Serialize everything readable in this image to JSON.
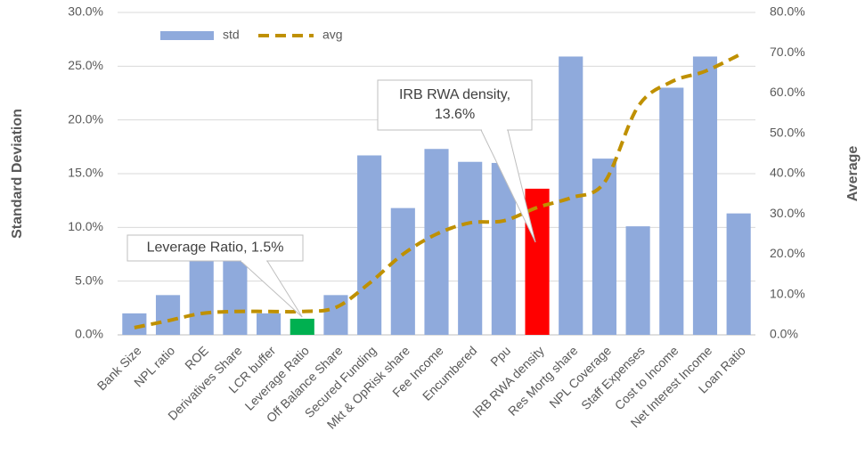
{
  "chart_data": {
    "type": "bar-line",
    "y_label": "Standard Deviation",
    "y2_label": "Average",
    "categories": [
      "Bank Size",
      "NPL ratio",
      "ROE",
      "Derivatives Share",
      "LCR buffer",
      "Leverage Ratio",
      "Off Balance Share",
      "Secured Funding",
      "Mkt & OpRisk share",
      "Fee Income",
      "Encumbered",
      "Ppu",
      "IRB RWA density",
      "Res Mortg share",
      "NPL Coverage",
      "Staff Expenses",
      "Cost to Income",
      "Net Interest Income",
      "Loan Ratio"
    ],
    "series": [
      {
        "name": "std",
        "type": "bar",
        "color": "#8faadc",
        "colors": [
          "#8faadc",
          "#8faadc",
          "#8faadc",
          "#8faadc",
          "#8faadc",
          "#00b050",
          "#8faadc",
          "#8faadc",
          "#8faadc",
          "#8faadc",
          "#8faadc",
          "#8faadc",
          "#ff0000",
          "#8faadc",
          "#8faadc",
          "#8faadc",
          "#8faadc",
          "#8faadc",
          "#8faadc"
        ],
        "values": [
          2.0,
          3.7,
          7.0,
          7.0,
          2.0,
          1.5,
          3.7,
          16.7,
          11.8,
          17.3,
          16.1,
          16.0,
          13.6,
          25.9,
          16.4,
          10.1,
          23.0,
          25.9,
          11.3
        ]
      },
      {
        "name": "avg",
        "type": "line",
        "axis": "y2",
        "color": "#bf9000",
        "values": [
          1.8,
          3.5,
          5.3,
          5.8,
          5.8,
          5.8,
          6.8,
          12.8,
          20.0,
          25.0,
          27.8,
          28.3,
          31.6,
          34.0,
          37.8,
          56.6,
          62.8,
          65.4,
          69.4
        ]
      }
    ],
    "ylim": [
      0,
      30
    ],
    "yticks": [
      {
        "value": 0,
        "label": "0.0%"
      },
      {
        "value": 5,
        "label": "5.0%"
      },
      {
        "value": 10,
        "label": "10.0%"
      },
      {
        "value": 15,
        "label": "15.0%"
      },
      {
        "value": 20,
        "label": "20.0%"
      },
      {
        "value": 25,
        "label": "25.0%"
      },
      {
        "value": 30,
        "label": "30.0%"
      }
    ],
    "y2lim": [
      0,
      80
    ],
    "y2ticks": [
      {
        "value": 0,
        "label": "0.0%"
      },
      {
        "value": 10,
        "label": "10.0%"
      },
      {
        "value": 20,
        "label": "20.0%"
      },
      {
        "value": 30,
        "label": "30.0%"
      },
      {
        "value": 40,
        "label": "40.0%"
      },
      {
        "value": 50,
        "label": "50.0%"
      },
      {
        "value": 60,
        "label": "60.0%"
      },
      {
        "value": 70,
        "label": "70.0%"
      },
      {
        "value": 80,
        "label": "80.0%"
      }
    ],
    "grid": true,
    "legend": "top-left",
    "annotations": [
      {
        "lines": [
          "Leverage Ratio, 1.5%"
        ]
      },
      {
        "lines": [
          "IRB RWA density,",
          "13.6%"
        ]
      }
    ]
  }
}
